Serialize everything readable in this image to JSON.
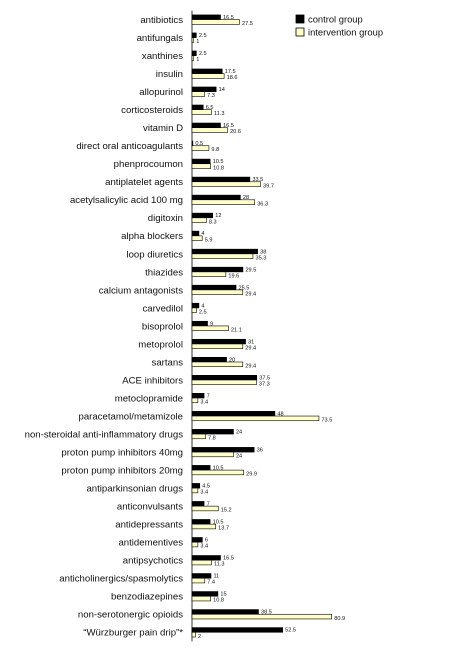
{
  "chart_data": {
    "type": "bar",
    "orientation": "horizontal",
    "title": "",
    "xlabel": "",
    "ylabel": "",
    "grid": false,
    "legend_position": "top-right",
    "xlim": [
      0,
      85
    ],
    "categories": [
      "antibiotics",
      "antifungals",
      "xanthines",
      "insulin",
      "allopurinol",
      "corticosteroids",
      "vitamin D",
      "direct oral anticoagulants",
      "phenprocoumon",
      "antiplatelet agents",
      "acetylsalicylic acid 100 mg",
      "digitoxin",
      "alpha blockers",
      "loop diuretics",
      "thiazides",
      "calcium antagonists",
      "carvedilol",
      "bisoprolol",
      "metoprolol",
      "sartans",
      "ACE inhibitors",
      "metoclopramide",
      "paracetamol/metamizole",
      "non-steroidal anti-inflammatory drugs",
      "proton pump inhibitors 40mg",
      "proton pump inhibitors 20mg",
      "antiparkinsonian drugs",
      "anticonvulsants",
      "antidepressants",
      "antidementives",
      "antipsychotics",
      "anticholinergics/spasmolytics",
      "benzodiazepines",
      "non-serotonergic opioids",
      "“Würzburger pain drip”*"
    ],
    "series": [
      {
        "name": "control group",
        "color": "#000000",
        "values": [
          16.5,
          2.5,
          2.5,
          17.5,
          14,
          6.5,
          16.5,
          0.5,
          10.5,
          33.5,
          28,
          12,
          4,
          38,
          29.5,
          25.5,
          4,
          9,
          31,
          20,
          37.5,
          7,
          48,
          24,
          36,
          10.5,
          4.5,
          7,
          10.5,
          6,
          16.5,
          11,
          15,
          38.5,
          52.5
        ]
      },
      {
        "name": "intervention group",
        "color": "#ffffcc",
        "values": [
          27.5,
          1,
          1,
          18.6,
          7.3,
          11.3,
          20.6,
          9.8,
          10.8,
          39.7,
          36.3,
          8.3,
          5.9,
          35.3,
          19.6,
          29.4,
          2.5,
          21.1,
          29.4,
          29.4,
          37.3,
          3.4,
          73.5,
          7.8,
          24,
          29.9,
          3.4,
          15.2,
          13.7,
          3.4,
          11.3,
          7.4,
          10.8,
          80.9,
          2
        ]
      }
    ]
  }
}
